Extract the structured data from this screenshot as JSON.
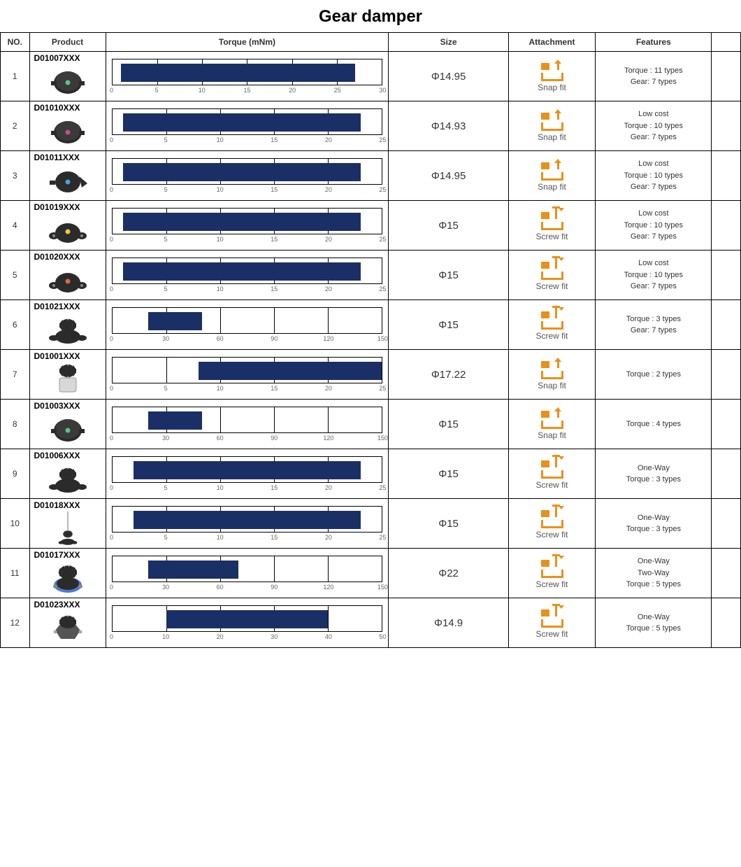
{
  "title": "Gear damper",
  "columns": [
    "NO.",
    "Product",
    "Torque (mNm)",
    "Size",
    "Attachment",
    "Features",
    ""
  ],
  "bar_color": "#1a2f66",
  "icon_color": "#e8911a",
  "attachment_types": {
    "snap": "Snap fit",
    "screw": "Screw fit"
  },
  "rows": [
    {
      "no": "1",
      "code": "D01007XXX",
      "product_svg": "gear-round",
      "dot_color": "#5bc28a",
      "torque": {
        "min": 1,
        "max": 27,
        "scale_max": 30,
        "tick_step": 5
      },
      "size": "Φ14.95",
      "attachment": "snap",
      "features": [
        "Torque : 11 types",
        "Gear: 7 types"
      ],
      "link": ""
    },
    {
      "no": "2",
      "code": "D01010XXX",
      "product_svg": "gear-round",
      "dot_color": "#c74f8a",
      "torque": {
        "min": 1,
        "max": 23,
        "scale_max": 25,
        "tick_step": 5
      },
      "size": "Φ14.93",
      "attachment": "snap",
      "features": [
        "Low cost",
        "Torque : 10 types",
        "Gear: 7 types"
      ],
      "link": ""
    },
    {
      "no": "3",
      "code": "D01011XXX",
      "product_svg": "gear-wing",
      "dot_color": "#4b9fd8",
      "torque": {
        "min": 1,
        "max": 23,
        "scale_max": 25,
        "tick_step": 5
      },
      "size": "Φ14.95",
      "attachment": "snap",
      "features": [
        "Low cost",
        "Torque : 10 types",
        "Gear: 7 types"
      ],
      "link": ""
    },
    {
      "no": "4",
      "code": "D01019XXX",
      "product_svg": "gear-ears",
      "dot_color": "#e6c84b",
      "torque": {
        "min": 1,
        "max": 23,
        "scale_max": 25,
        "tick_step": 5
      },
      "size": "Φ15",
      "attachment": "screw",
      "features": [
        "Low cost",
        "Torque : 10 types",
        "Gear: 7 types"
      ],
      "link": ""
    },
    {
      "no": "5",
      "code": "D01020XXX",
      "product_svg": "gear-ears",
      "dot_color": "#d46a4a",
      "torque": {
        "min": 1,
        "max": 23,
        "scale_max": 25,
        "tick_step": 5
      },
      "size": "Φ15",
      "attachment": "screw",
      "features": [
        "Low cost",
        "Torque : 10 types",
        "Gear: 7 types"
      ],
      "link": ""
    },
    {
      "no": "6",
      "code": "D01021XXX",
      "product_svg": "gear-top-ears",
      "dot_color": "",
      "torque": {
        "min": 20,
        "max": 50,
        "scale_max": 150,
        "tick_step": 30
      },
      "size": "Φ15",
      "attachment": "screw",
      "features": [
        "Torque : 3 types",
        "Gear: 7 types"
      ],
      "link": ""
    },
    {
      "no": "7",
      "code": "D01001XXX",
      "product_svg": "gear-cylinder",
      "dot_color": "",
      "torque": {
        "min": 8,
        "max": 25,
        "scale_max": 25,
        "tick_step": 5
      },
      "size": "Φ17.22",
      "attachment": "snap",
      "features": [
        "Torque : 2 types"
      ],
      "link": ""
    },
    {
      "no": "8",
      "code": "D01003XXX",
      "product_svg": "gear-round",
      "dot_color": "#5bc28a",
      "torque": {
        "min": 20,
        "max": 50,
        "scale_max": 150,
        "tick_step": 30
      },
      "size": "Φ15",
      "attachment": "snap",
      "features": [
        "Torque : 4 types"
      ],
      "link": ""
    },
    {
      "no": "9",
      "code": "D01006XXX",
      "product_svg": "gear-top-ears",
      "dot_color": "",
      "torque": {
        "min": 2,
        "max": 23,
        "scale_max": 25,
        "tick_step": 5
      },
      "size": "Φ15",
      "attachment": "screw",
      "features": [
        "One-Way",
        "Torque : 3 types"
      ],
      "link": ""
    },
    {
      "no": "10",
      "code": "D01018XXX",
      "product_svg": "gear-shaft",
      "dot_color": "",
      "torque": {
        "min": 2,
        "max": 23,
        "scale_max": 25,
        "tick_step": 5
      },
      "size": "Φ15",
      "attachment": "screw",
      "features": [
        "One-Way",
        "Torque : 3 types"
      ],
      "link": ""
    },
    {
      "no": "11",
      "code": "D01017XXX",
      "product_svg": "gear-blue",
      "dot_color": "",
      "torque": {
        "min": 20,
        "max": 70,
        "scale_max": 150,
        "tick_step": 30
      },
      "size": "Φ22",
      "attachment": "screw",
      "features": [
        "One-Way",
        "Two-Way",
        "Torque : 5 types"
      ],
      "link": ""
    },
    {
      "no": "12",
      "code": "D01023XXX",
      "product_svg": "gear-hex",
      "dot_color": "",
      "torque": {
        "min": 10,
        "max": 40,
        "scale_max": 50,
        "tick_step": 10
      },
      "size": "Φ14.9",
      "attachment": "screw",
      "features": [
        "One-Way",
        "Torque : 5 types"
      ],
      "link": ""
    }
  ]
}
